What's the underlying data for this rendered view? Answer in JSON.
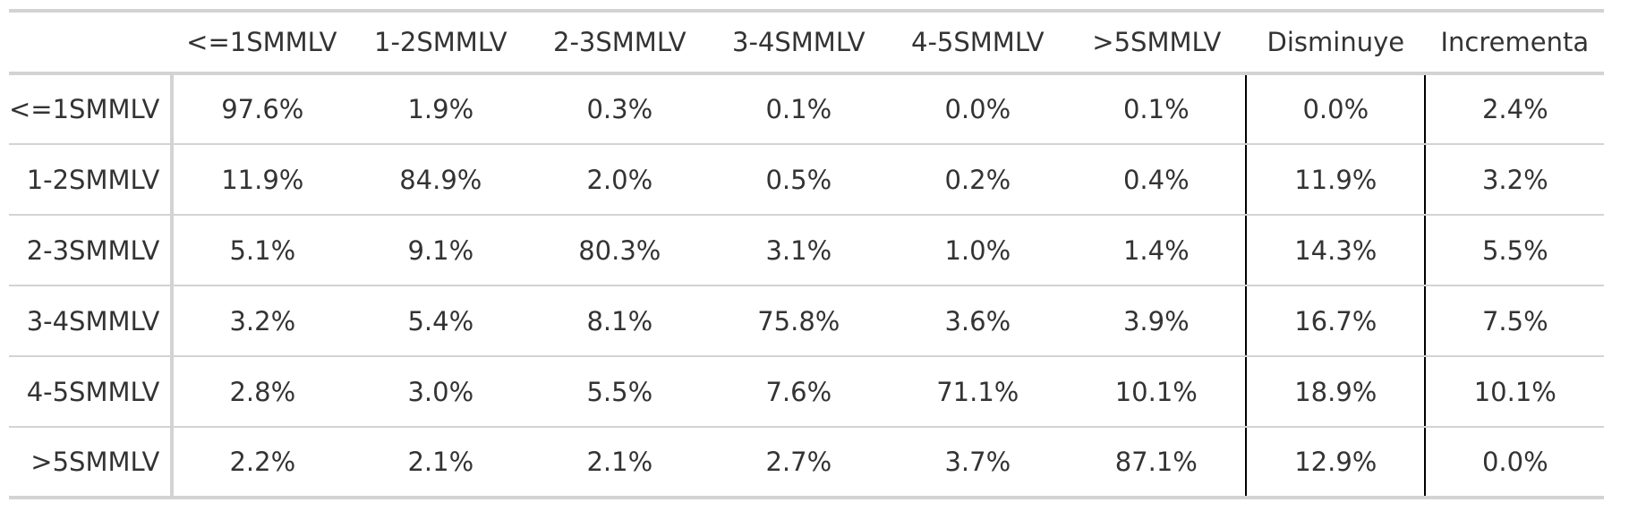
{
  "chart_data": {
    "type": "table",
    "columns": [
      "<=1SMMLV",
      "1-2SMMLV",
      "2-3SMMLV",
      "3-4SMMLV",
      "4-5SMMLV",
      ">5SMMLV",
      "Disminuye",
      "Incrementa"
    ],
    "rows": [
      {
        "label": "<=1SMMLV",
        "values": [
          "97.6%",
          "1.9%",
          "0.3%",
          "0.1%",
          "0.0%",
          "0.1%",
          "0.0%",
          "2.4%"
        ]
      },
      {
        "label": "1-2SMMLV",
        "values": [
          "11.9%",
          "84.9%",
          "2.0%",
          "0.5%",
          "0.2%",
          "0.4%",
          "11.9%",
          "3.2%"
        ]
      },
      {
        "label": "2-3SMMLV",
        "values": [
          "5.1%",
          "9.1%",
          "80.3%",
          "3.1%",
          "1.0%",
          "1.4%",
          "14.3%",
          "5.5%"
        ]
      },
      {
        "label": "3-4SMMLV",
        "values": [
          "3.2%",
          "5.4%",
          "8.1%",
          "75.8%",
          "3.6%",
          "3.9%",
          "16.7%",
          "7.5%"
        ]
      },
      {
        "label": "4-5SMMLV",
        "values": [
          "2.8%",
          "3.0%",
          "5.5%",
          "7.6%",
          "71.1%",
          "10.1%",
          "18.9%",
          "10.1%"
        ]
      },
      {
        "label": ">5SMMLV",
        "values": [
          "2.2%",
          "2.1%",
          "2.1%",
          "2.7%",
          "3.7%",
          "87.1%",
          "12.9%",
          "0.0%"
        ]
      }
    ]
  }
}
